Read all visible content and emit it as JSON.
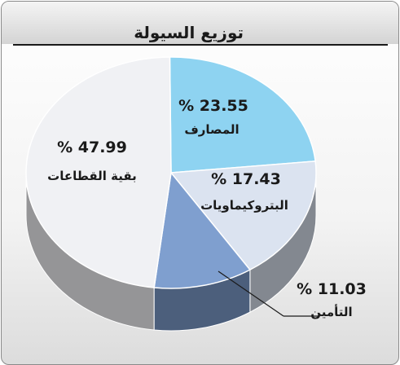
{
  "title": "توزيع السيولة",
  "chart_data": {
    "type": "pie",
    "title": "توزيع السيولة",
    "unit_symbol": "%",
    "slices": [
      {
        "label": "المصارف",
        "value": 23.55,
        "value_text": "% 23.55",
        "color": "#8ed3f1"
      },
      {
        "label": "البتروكيماويات",
        "value": 17.43,
        "value_text": "% 17.43",
        "color": "#dbe3f0"
      },
      {
        "label": "التأمين",
        "value": 11.03,
        "value_text": "% 11.03",
        "color": "#7f9fcf"
      },
      {
        "label": "بقية القطاعات",
        "value": 47.99,
        "value_text": "% 47.99",
        "color": "#f0f1f4"
      }
    ]
  }
}
